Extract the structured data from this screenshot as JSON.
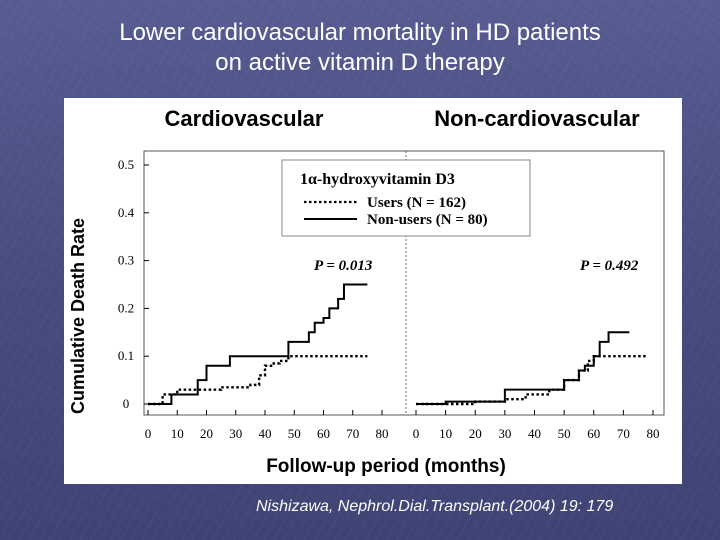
{
  "title": {
    "line1": "Lower cardiovascular mortality in HD patients",
    "line2": "on active vitamin D therapy"
  },
  "citation": "Nishizawa, Nephrol.Dial.Transplant.(2004) 19: 179",
  "colors": {
    "background": "#4a4f82",
    "panel": "#ffffff",
    "ink": "#000000"
  },
  "chart_data": {
    "type": "line",
    "xlabel": "Follow-up period (months)",
    "ylabel": "Cumulative  Death Rate",
    "xlim": [
      0,
      80
    ],
    "ylim": [
      0,
      0.5
    ],
    "x_ticks": [
      "0",
      "10",
      "20",
      "30",
      "40",
      "50",
      "60",
      "70",
      "80"
    ],
    "y_ticks": [
      "0",
      "0.1",
      "0.2",
      "0.3",
      "0.4",
      "0.5"
    ],
    "legend": {
      "title": "1α-hydroxyvitamin D3",
      "users_label": "Users (N = 162)",
      "nonusers_label": "Non-users (N = 80)"
    },
    "panels": [
      {
        "title": "Cardiovascular",
        "p_value": "P = 0.013",
        "series": [
          {
            "name": "Users (N = 162)",
            "style": "dotted",
            "x": [
              0,
              5,
              10,
              20,
              25,
              35,
              38,
              40,
              43,
              45,
              48,
              75
            ],
            "y": [
              0,
              0.02,
              0.03,
              0.03,
              0.035,
              0.04,
              0.06,
              0.08,
              0.085,
              0.09,
              0.1,
              0.1
            ]
          },
          {
            "name": "Non-users (N = 80)",
            "style": "solid",
            "x": [
              0,
              8,
              17,
              20,
              28,
              48,
              55,
              57,
              60,
              62,
              65,
              67,
              70,
              75
            ],
            "y": [
              0,
              0.02,
              0.05,
              0.08,
              0.1,
              0.13,
              0.15,
              0.17,
              0.18,
              0.2,
              0.22,
              0.25,
              0.25,
              0.25
            ]
          }
        ]
      },
      {
        "title": "Non-cardiovascular",
        "p_value": "P = 0.492",
        "series": [
          {
            "name": "Users (N = 162)",
            "style": "dotted",
            "x": [
              0,
              20,
              30,
              37,
              45,
              50,
              55,
              58,
              60,
              75,
              78
            ],
            "y": [
              0,
              0.005,
              0.01,
              0.02,
              0.03,
              0.05,
              0.07,
              0.09,
              0.1,
              0.1,
              0.1
            ]
          },
          {
            "name": "Non-users (N = 80)",
            "style": "solid",
            "x": [
              0,
              10,
              30,
              50,
              55,
              57,
              60,
              62,
              65,
              72
            ],
            "y": [
              0,
              0.005,
              0.03,
              0.05,
              0.07,
              0.08,
              0.1,
              0.13,
              0.15,
              0.15
            ]
          }
        ]
      }
    ]
  }
}
